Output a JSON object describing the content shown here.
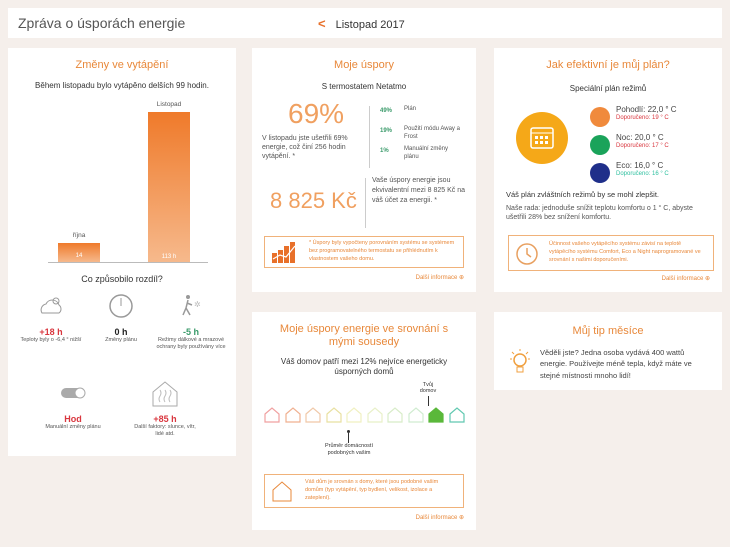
{
  "header": {
    "title": "Zpráva o úsporách energie",
    "month": "Listopad 2017",
    "prev_icon": "chevron-left-icon"
  },
  "heating": {
    "title": "Změny ve vytápění",
    "subtitle": "Během listopadu bylo vytápěno delších 99 hodin.",
    "chart_data": {
      "type": "bar",
      "categories": [
        "října",
        "Listopad"
      ],
      "values": [
        14,
        113
      ],
      "value_labels": [
        "14",
        "113 h"
      ]
    },
    "question": "Co způsobilo rozdíl?",
    "factors": [
      {
        "icon": "weather-cloud-sun-icon",
        "value": "+18 h",
        "desc": "Teploty byly o -6,4 ° nižší",
        "color": "#d9363e"
      },
      {
        "icon": "clock-icon",
        "value": "0 h",
        "desc": "Změny plánu",
        "color": "#222222"
      },
      {
        "icon": "away-frost-icon",
        "value": "-5 h",
        "desc": "Režimy dálkové a mrazové ochrany byly používány více",
        "color": "#3a9a6a"
      },
      {
        "icon": "toggle-icon",
        "value": "Hod",
        "desc": "Manuální změny plánu",
        "color": "#d9363e"
      },
      {
        "icon": "house-heat-icon",
        "value": "+85 h",
        "desc": "Další faktory: slunce, vítr, lidé atd.",
        "color": "#d9363e"
      }
    ]
  },
  "savings": {
    "title": "Moje úspory",
    "subtitle": "S termostatem Netatmo",
    "percent": "69%",
    "percent_desc": "V listopadu jste ušetřili 69% energie, což činí 256 hodin vytápění. *",
    "breakdown": [
      {
        "value": "49%",
        "label": "Plán"
      },
      {
        "value": "19%",
        "label": "Použití módu Away a Frost"
      },
      {
        "value": "1%",
        "label": "Manuální změny plánu"
      }
    ],
    "amount": "8 825 Kč",
    "amount_desc": "Vaše úspory energie jsou ekvivalentní mezi 8 825 Kč na váš účet za energii. *",
    "note": "* Úspory byly vypočteny porovnáním systému se systémem bez programovatelného termostatu se přihlédnutím k vlastnostem vašeho domu.",
    "more": "Další informace"
  },
  "plan": {
    "title": "Jak efektivní je můj plán?",
    "subtitle": "Speciální plán režimů",
    "modes": [
      {
        "name": "Pohodlí: 22,0 ° C",
        "rec": "Doporučeno: 19 ° C",
        "color": "#f08a3c",
        "rec_color": "#d9363e"
      },
      {
        "name": "Noc: 20,0 ° C",
        "rec": "Doporučeno: 17 ° C",
        "color": "#1aa35a",
        "rec_color": "#d9363e"
      },
      {
        "name": "Eco: 16,0 ° C",
        "rec": "Doporučeno: 16 ° C",
        "color": "#1f2f8a",
        "rec_color": "#2fc0a0"
      }
    ],
    "verdict": "Váš plán zvláštních režimů by se mohl zlepšit.",
    "advice": "Naše rada: jednoduše snížit teplotu komfortu o 1 ° C, abyste ušetřili 28% bez snížení komfortu.",
    "note": "Účinnost vašeho vytápěcího systému závisí na teplotě vytápěcího systému Comfort, Eco a Night naprogramované ve srovnání s našimi doporučeními.",
    "more": "Další informace"
  },
  "neighbors": {
    "title": "Moje úspory energie ve srovnání s mými sousedy",
    "subtitle": "Váš domov patří mezi 12% nejvíce energeticky úsporných domů",
    "your_home": "Tvůj domov",
    "average": "Průměr domácností podobných vašim",
    "your_index": 8,
    "house_colors": [
      "#f0a0a0",
      "#f0b090",
      "#f0c8a8",
      "#e8e0a0",
      "#f0f0c0",
      "#e8f0c8",
      "#d8ecc8",
      "#d0ecd0",
      "#5ab83a",
      "#60c8b0"
    ],
    "note": "Váš dům je srovnán s domy, které jsou podobné vašim domům (typ vytápění, typ bydlení, velikost, izolace a zateplení).",
    "more": "Další informace"
  },
  "tip": {
    "title": "Můj tip měsíce",
    "text": "Věděli jste? Jedna osoba vydává 400 wattů energie. Používejte méně tepla, když máte ve stejné místnosti mnoho lidí!"
  }
}
